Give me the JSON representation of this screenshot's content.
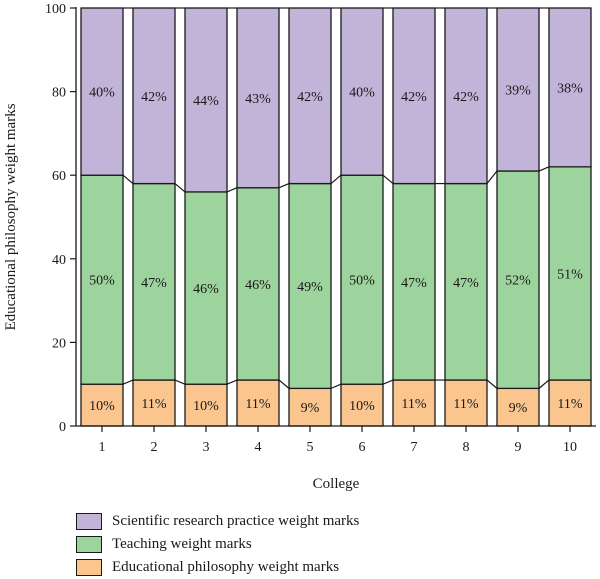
{
  "chart_data": {
    "type": "bar",
    "stacked": true,
    "categories": [
      "1",
      "2",
      "3",
      "4",
      "5",
      "6",
      "7",
      "8",
      "9",
      "10"
    ],
    "series": [
      {
        "name": "Educational philosophy weight marks",
        "color": "#fbc590",
        "values": [
          10,
          11,
          10,
          11,
          9,
          10,
          11,
          11,
          9,
          11
        ],
        "labels": [
          "10%",
          "11%",
          "10%",
          "11%",
          "9%",
          "10%",
          "11%",
          "11%",
          "9%",
          "11%"
        ]
      },
      {
        "name": "Teaching weight marks",
        "color": "#9dd39d",
        "values": [
          50,
          47,
          46,
          46,
          49,
          50,
          47,
          47,
          52,
          51
        ],
        "labels": [
          "50%",
          "47%",
          "46%",
          "46%",
          "49%",
          "50%",
          "47%",
          "47%",
          "52%",
          "51%"
        ]
      },
      {
        "name": "Scientific research practice weight marks",
        "color": "#c2b3d8",
        "values": [
          40,
          42,
          44,
          43,
          42,
          40,
          42,
          42,
          39,
          38
        ],
        "labels": [
          "40%",
          "42%",
          "44%",
          "43%",
          "42%",
          "40%",
          "42%",
          "42%",
          "39%",
          "38%"
        ]
      }
    ],
    "title": "",
    "xlabel": "College",
    "ylabel": "Educational philosophy weight marks",
    "ylim": [
      0,
      100
    ],
    "yticks": [
      "0",
      "20",
      "40",
      "60",
      "80",
      "100"
    ],
    "grid": false,
    "legend_position": "bottom"
  },
  "legend": {
    "items": [
      {
        "label": "Scientific research practice weight marks",
        "color": "#c2b3d8"
      },
      {
        "label": "Teaching weight marks",
        "color": "#9dd39d"
      },
      {
        "label": "Educational philosophy weight marks",
        "color": "#fbc590"
      }
    ]
  }
}
